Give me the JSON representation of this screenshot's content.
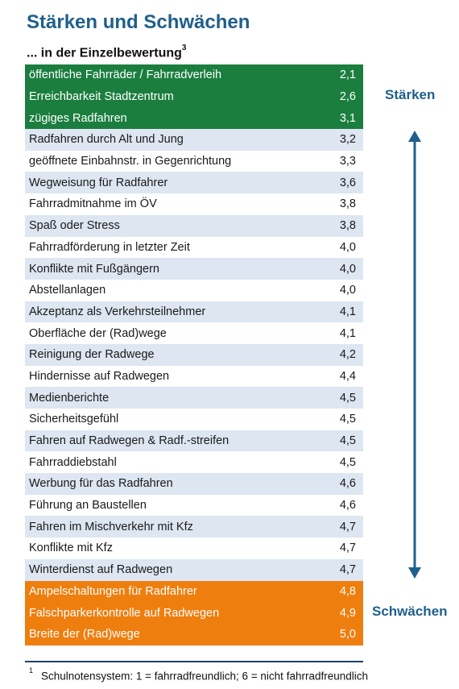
{
  "title": "Stärken und Schwächen",
  "subtitle": "... in der Einzelbewertung",
  "subtitle_sup": "3",
  "labels": {
    "strengths": "Stärken",
    "weaknesses": "Schwächen"
  },
  "colors": {
    "strength": "#1b7e3f",
    "weakness": "#ee7e0e",
    "stripe": "#dde6f1",
    "accent": "#1f5f8b"
  },
  "rows": [
    {
      "label": "öffentliche Fahrräder / Fahrradverleih",
      "value": "2,1",
      "group": "strength"
    },
    {
      "label": "Erreichbarkeit Stadtzentrum",
      "value": "2,6",
      "group": "strength"
    },
    {
      "label": "zügiges Radfahren",
      "value": "3,1",
      "group": "strength"
    },
    {
      "label": "Radfahren durch Alt und Jung",
      "value": "3,2",
      "group": "neutral"
    },
    {
      "label": "geöffnete Einbahnstr. in Gegenrichtung",
      "value": "3,3",
      "group": "neutral"
    },
    {
      "label": "Wegweisung für Radfahrer",
      "value": "3,6",
      "group": "neutral"
    },
    {
      "label": "Fahrradmitnahme im ÖV",
      "value": "3,8",
      "group": "neutral"
    },
    {
      "label": "Spaß oder Stress",
      "value": "3,8",
      "group": "neutral"
    },
    {
      "label": "Fahrradförderung in letzter Zeit",
      "value": "4,0",
      "group": "neutral"
    },
    {
      "label": "Konflikte mit Fußgängern",
      "value": "4,0",
      "group": "neutral"
    },
    {
      "label": "Abstellanlagen",
      "value": "4,0",
      "group": "neutral"
    },
    {
      "label": "Akzeptanz als Verkehrsteilnehmer",
      "value": "4,1",
      "group": "neutral"
    },
    {
      "label": "Oberfläche der (Rad)wege",
      "value": "4,1",
      "group": "neutral"
    },
    {
      "label": "Reinigung der Radwege",
      "value": "4,2",
      "group": "neutral"
    },
    {
      "label": "Hindernisse auf Radwegen",
      "value": "4,4",
      "group": "neutral"
    },
    {
      "label": "Medienberichte",
      "value": "4,5",
      "group": "neutral"
    },
    {
      "label": "Sicherheitsgefühl",
      "value": "4,5",
      "group": "neutral"
    },
    {
      "label": "Fahren auf Radwegen & Radf.-streifen",
      "value": "4,5",
      "group": "neutral"
    },
    {
      "label": "Fahrraddiebstahl",
      "value": "4,5",
      "group": "neutral"
    },
    {
      "label": "Werbung für das Radfahren",
      "value": "4,6",
      "group": "neutral"
    },
    {
      "label": "Führung an Baustellen",
      "value": "4,6",
      "group": "neutral"
    },
    {
      "label": "Fahren im Mischverkehr mit Kfz",
      "value": "4,7",
      "group": "neutral"
    },
    {
      "label": "Konflikte mit Kfz",
      "value": "4,7",
      "group": "neutral"
    },
    {
      "label": "Winterdienst auf Radwegen",
      "value": "4,7",
      "group": "neutral"
    },
    {
      "label": "Ampelschaltungen für Radfahrer",
      "value": "4,8",
      "group": "weakness"
    },
    {
      "label": "Falschparkerkontrolle auf Radwegen",
      "value": "4,9",
      "group": "weakness"
    },
    {
      "label": "Breite der (Rad)wege",
      "value": "5,0",
      "group": "weakness"
    }
  ],
  "footnote": {
    "marker": "1",
    "text": "Schulnotensystem: 1 = fahrradfreundlich; 6 = nicht fahrradfreundlich"
  }
}
